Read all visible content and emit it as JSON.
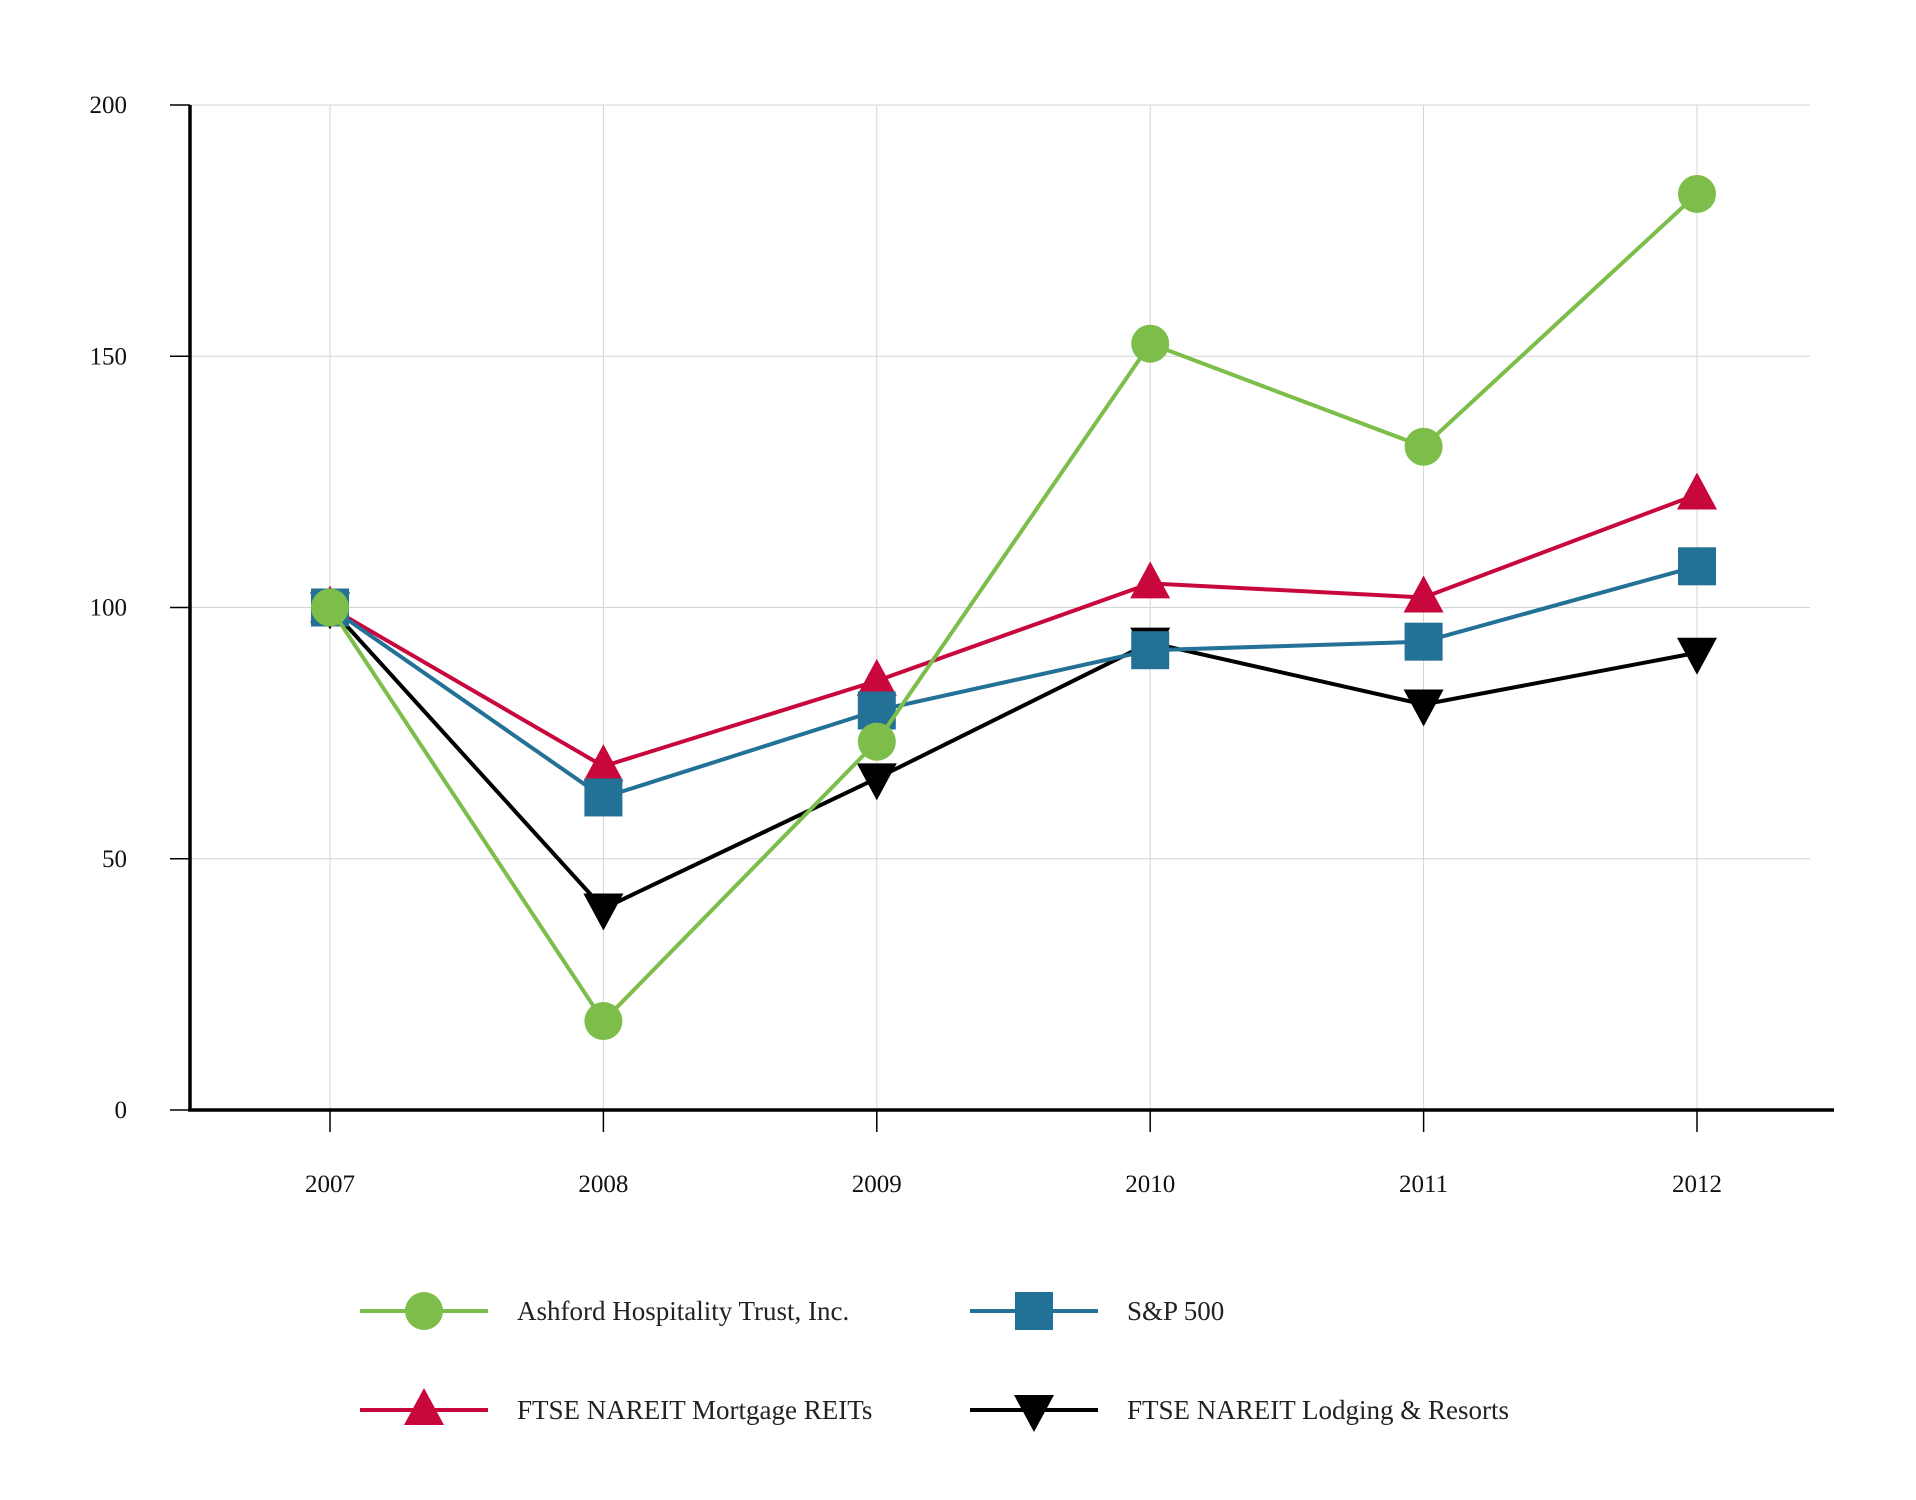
{
  "chart_data": {
    "type": "line",
    "title": "",
    "xlabel": "",
    "ylabel": "",
    "categories": [
      "2007",
      "2008",
      "2009",
      "2010",
      "2011",
      "2012"
    ],
    "ylim": [
      0,
      200
    ],
    "yticks": [
      "0",
      "50",
      "100",
      "150",
      "200"
    ],
    "grid": true,
    "legend_position": "bottom",
    "series": [
      {
        "name": "Ashford Hospitality Trust, Inc.",
        "color": "#7DBE4B",
        "marker": "circle",
        "values": [
          100,
          17.7,
          73.3,
          152.5,
          132,
          182.3
        ]
      },
      {
        "name": "S&P 500",
        "color": "#237197",
        "marker": "square",
        "values": [
          100,
          62.2,
          79.5,
          91.5,
          93.2,
          108.2
        ]
      },
      {
        "name": "FTSE NAREIT Mortgage REITs",
        "color": "#C8073C",
        "marker": "triangle-up",
        "values": [
          100,
          68.4,
          85.4,
          104.8,
          102,
          122.5
        ]
      },
      {
        "name": "FTSE NAREIT Lodging & Resorts",
        "color": "#000000",
        "marker": "triangle-down",
        "values": [
          100,
          40.1,
          66,
          93,
          80.7,
          91
        ]
      }
    ]
  }
}
